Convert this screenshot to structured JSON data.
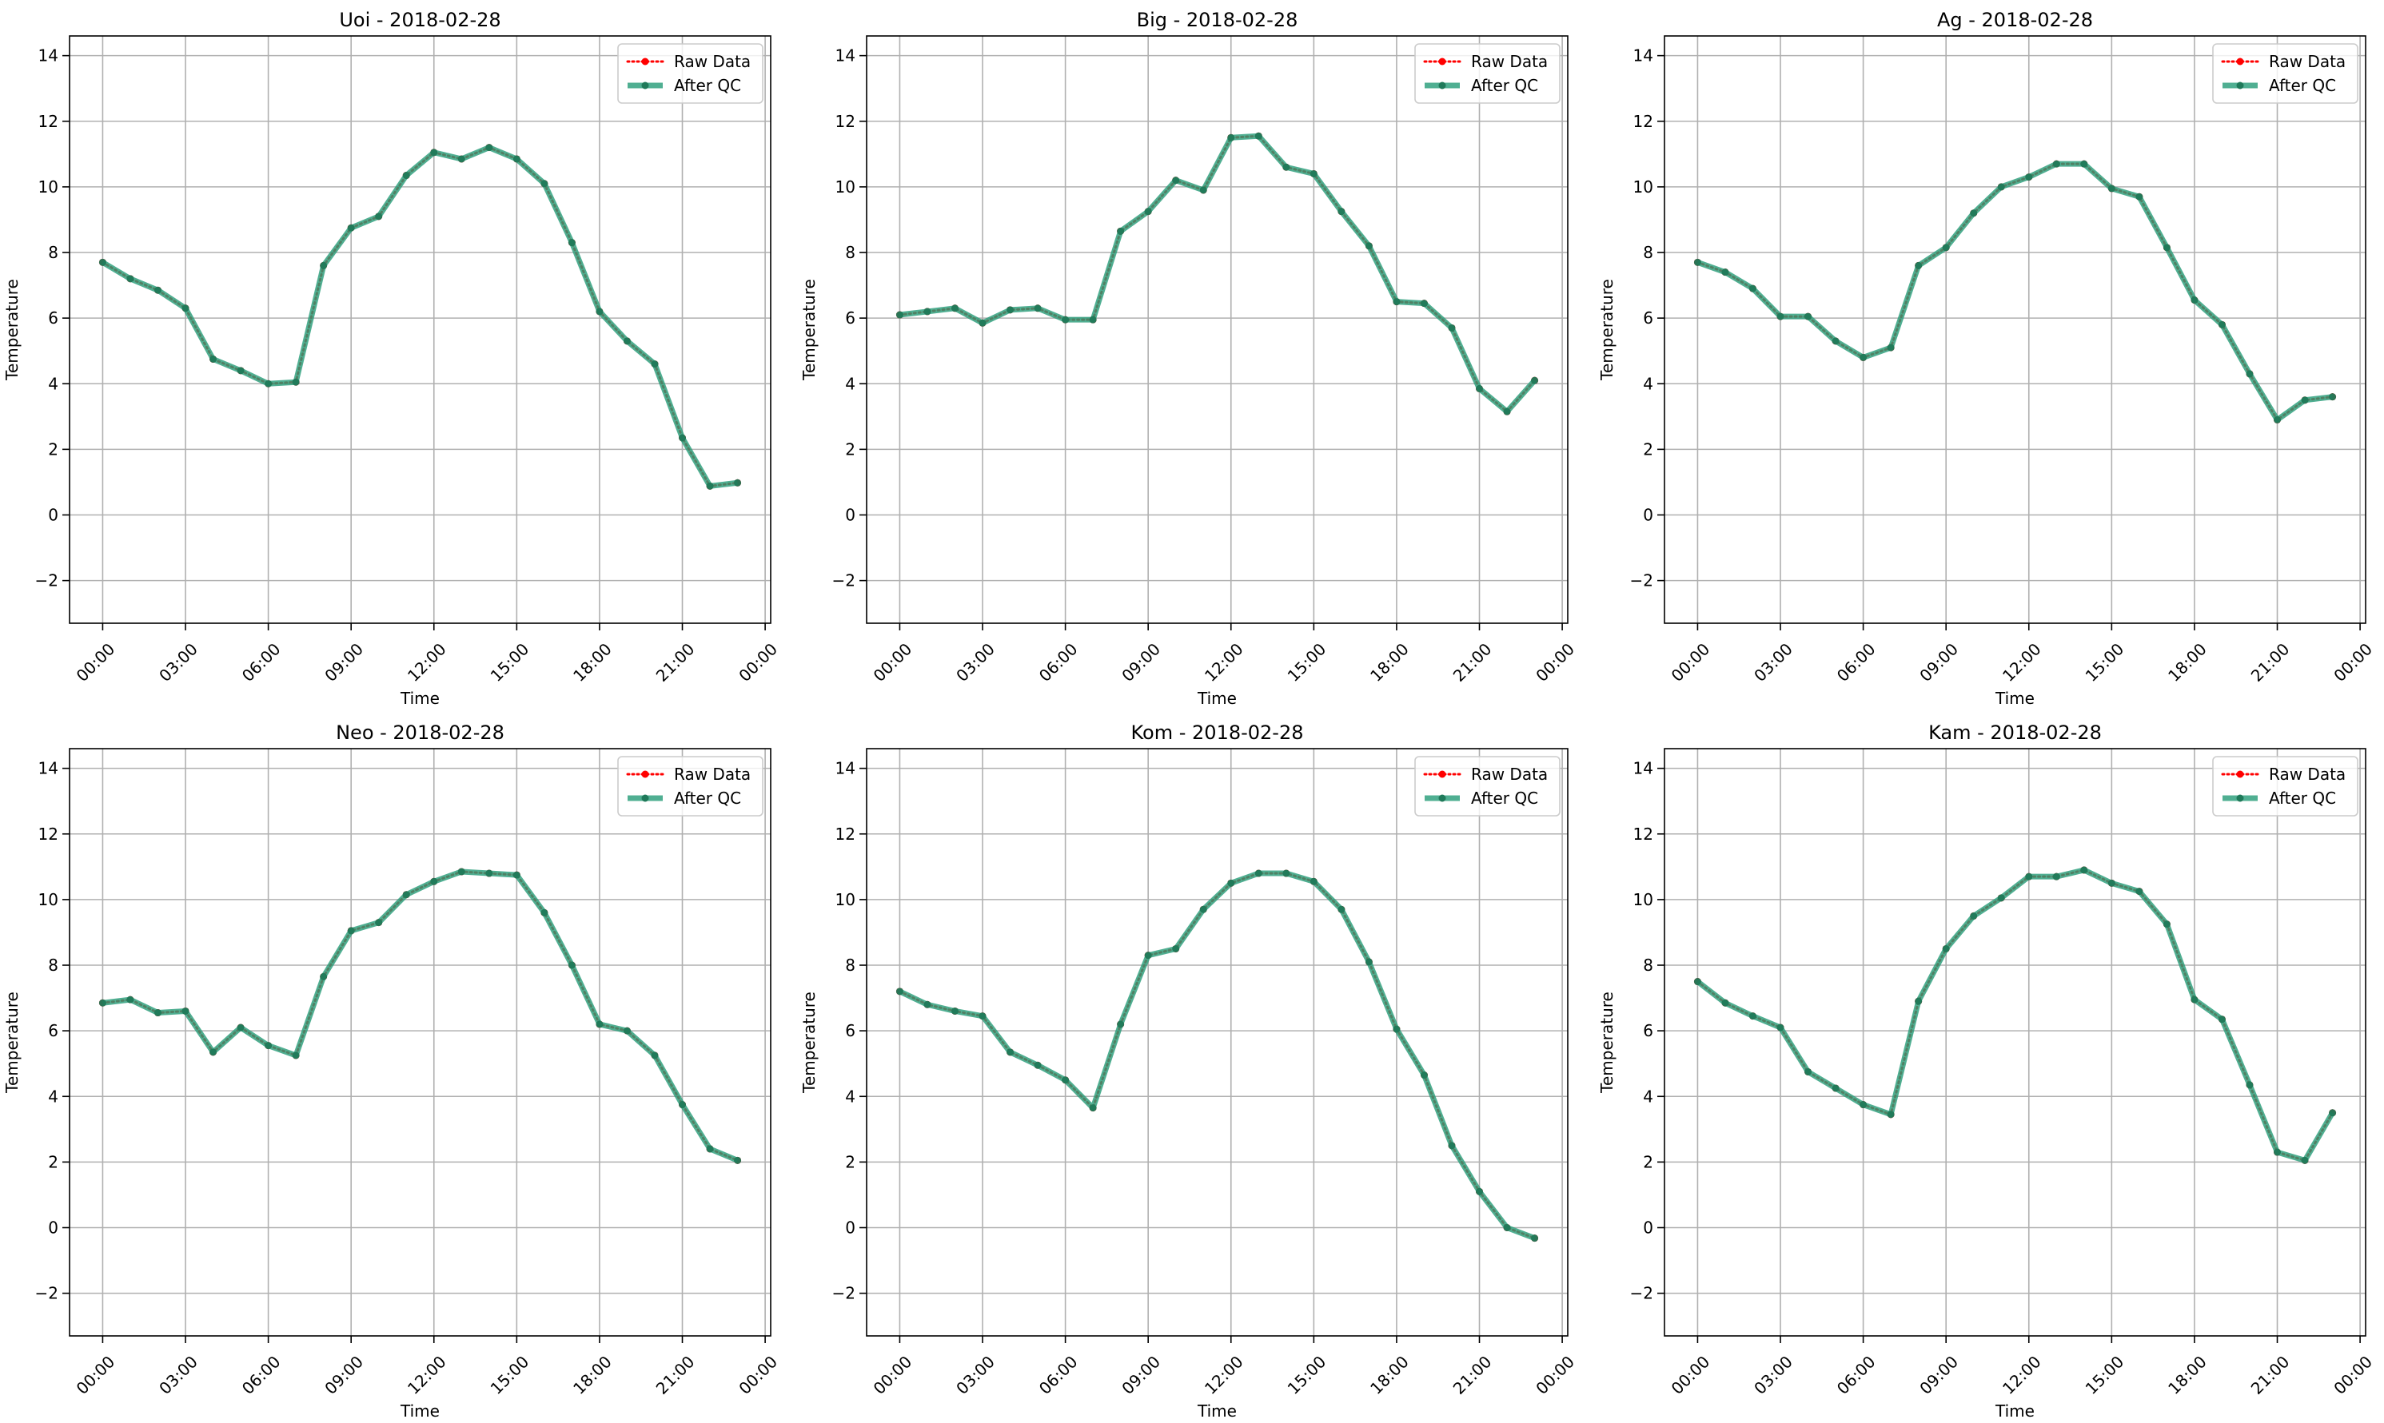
{
  "colors": {
    "raw": "#ff0000",
    "qc": "#2a9d7a",
    "qc_marker": "#1f7a5a",
    "grid": "#b0b0b0"
  },
  "x_ticks": [
    "00:00",
    "03:00",
    "06:00",
    "09:00",
    "12:00",
    "15:00",
    "18:00",
    "21:00",
    "00:00"
  ],
  "chart_data": [
    {
      "type": "line",
      "title": "Uoi - 2018-02-28",
      "xlabel": "Time",
      "ylabel": "Temperature",
      "x_unit": "hour of day",
      "xlim": [
        -1.2,
        24.2
      ],
      "ylim": [
        -3.3,
        14.6
      ],
      "yticks": [
        -2,
        0,
        2,
        4,
        6,
        8,
        10,
        12,
        14
      ],
      "grid": true,
      "legend_position": "top-right",
      "x": [
        0,
        1,
        2,
        3,
        4,
        5,
        6,
        7,
        8,
        9,
        10,
        11,
        12,
        13,
        14,
        15,
        16,
        17,
        18,
        19,
        20,
        21,
        22,
        23
      ],
      "series": [
        {
          "name": "Raw Data",
          "style": "dotted",
          "values": [
            7.7,
            7.2,
            6.85,
            6.3,
            4.75,
            4.4,
            4.0,
            4.05,
            7.6,
            8.75,
            9.1,
            10.35,
            11.05,
            10.85,
            11.2,
            10.85,
            10.1,
            8.3,
            6.2,
            5.3,
            4.6,
            2.35,
            0.88,
            0.98
          ]
        },
        {
          "name": "After QC",
          "style": "solid",
          "values": [
            7.7,
            7.2,
            6.85,
            6.3,
            4.75,
            4.4,
            4.0,
            4.05,
            7.6,
            8.75,
            9.1,
            10.35,
            11.05,
            10.85,
            11.2,
            10.85,
            10.1,
            8.3,
            6.2,
            5.3,
            4.6,
            2.35,
            0.88,
            0.98
          ]
        }
      ]
    },
    {
      "type": "line",
      "title": "Big - 2018-02-28",
      "xlabel": "Time",
      "ylabel": "Temperature",
      "x_unit": "hour of day",
      "xlim": [
        -1.2,
        24.2
      ],
      "ylim": [
        -3.3,
        14.6
      ],
      "yticks": [
        -2,
        0,
        2,
        4,
        6,
        8,
        10,
        12,
        14
      ],
      "grid": true,
      "legend_position": "top-right",
      "x": [
        0,
        1,
        2,
        3,
        4,
        5,
        6,
        7,
        8,
        9,
        10,
        11,
        12,
        13,
        14,
        15,
        16,
        17,
        18,
        19,
        20,
        21,
        22,
        23
      ],
      "series": [
        {
          "name": "Raw Data",
          "style": "dotted",
          "values": [
            6.1,
            6.2,
            6.3,
            5.85,
            6.25,
            6.3,
            5.95,
            5.95,
            8.65,
            9.25,
            10.2,
            9.9,
            11.5,
            11.55,
            10.6,
            10.4,
            9.25,
            8.2,
            6.5,
            6.45,
            5.7,
            3.85,
            3.15,
            4.1
          ]
        },
        {
          "name": "After QC",
          "style": "solid",
          "values": [
            6.1,
            6.2,
            6.3,
            5.85,
            6.25,
            6.3,
            5.95,
            5.95,
            8.65,
            9.25,
            10.2,
            9.9,
            11.5,
            11.55,
            10.6,
            10.4,
            9.25,
            8.2,
            6.5,
            6.45,
            5.7,
            3.85,
            3.15,
            4.1
          ]
        }
      ]
    },
    {
      "type": "line",
      "title": "Ag - 2018-02-28",
      "xlabel": "Time",
      "ylabel": "Temperature",
      "x_unit": "hour of day",
      "xlim": [
        -1.2,
        24.2
      ],
      "ylim": [
        -3.3,
        14.6
      ],
      "yticks": [
        -2,
        0,
        2,
        4,
        6,
        8,
        10,
        12,
        14
      ],
      "grid": true,
      "legend_position": "top-right",
      "x": [
        0,
        1,
        2,
        3,
        4,
        5,
        6,
        7,
        8,
        9,
        10,
        11,
        12,
        13,
        14,
        15,
        16,
        17,
        18,
        19,
        20,
        21,
        22,
        23
      ],
      "series": [
        {
          "name": "Raw Data",
          "style": "dotted",
          "values": [
            7.7,
            7.4,
            6.9,
            6.05,
            6.05,
            5.3,
            4.8,
            5.1,
            7.6,
            8.15,
            9.2,
            10.0,
            10.3,
            10.7,
            10.7,
            9.95,
            9.7,
            8.15,
            6.55,
            5.8,
            4.3,
            2.9,
            3.5,
            3.6
          ]
        },
        {
          "name": "After QC",
          "style": "solid",
          "values": [
            7.7,
            7.4,
            6.9,
            6.05,
            6.05,
            5.3,
            4.8,
            5.1,
            7.6,
            8.15,
            9.2,
            10.0,
            10.3,
            10.7,
            10.7,
            9.95,
            9.7,
            8.15,
            6.55,
            5.8,
            4.3,
            2.9,
            3.5,
            3.6
          ]
        }
      ]
    },
    {
      "type": "line",
      "title": "Neo - 2018-02-28",
      "xlabel": "Time",
      "ylabel": "Temperature",
      "x_unit": "hour of day",
      "xlim": [
        -1.2,
        24.2
      ],
      "ylim": [
        -3.3,
        14.6
      ],
      "yticks": [
        -2,
        0,
        2,
        4,
        6,
        8,
        10,
        12,
        14
      ],
      "grid": true,
      "legend_position": "top-right",
      "x": [
        0,
        1,
        2,
        3,
        4,
        5,
        6,
        7,
        8,
        9,
        10,
        11,
        12,
        13,
        14,
        15,
        16,
        17,
        18,
        19,
        20,
        21,
        22,
        23
      ],
      "series": [
        {
          "name": "Raw Data",
          "style": "dotted",
          "values": [
            6.85,
            6.95,
            6.55,
            6.6,
            5.35,
            6.1,
            5.55,
            5.25,
            7.65,
            9.05,
            9.3,
            10.15,
            10.55,
            10.85,
            10.8,
            10.75,
            9.6,
            8.0,
            6.2,
            6.0,
            5.25,
            3.75,
            2.4,
            2.05
          ]
        },
        {
          "name": "After QC",
          "style": "solid",
          "values": [
            6.85,
            6.95,
            6.55,
            6.6,
            5.35,
            6.1,
            5.55,
            5.25,
            7.65,
            9.05,
            9.3,
            10.15,
            10.55,
            10.85,
            10.8,
            10.75,
            9.6,
            8.0,
            6.2,
            6.0,
            5.25,
            3.75,
            2.4,
            2.05
          ]
        }
      ]
    },
    {
      "type": "line",
      "title": "Kom - 2018-02-28",
      "xlabel": "Time",
      "ylabel": "Temperature",
      "x_unit": "hour of day",
      "xlim": [
        -1.2,
        24.2
      ],
      "ylim": [
        -3.3,
        14.6
      ],
      "yticks": [
        -2,
        0,
        2,
        4,
        6,
        8,
        10,
        12,
        14
      ],
      "grid": true,
      "legend_position": "top-right",
      "x": [
        0,
        1,
        2,
        3,
        4,
        5,
        6,
        7,
        8,
        9,
        10,
        11,
        12,
        13,
        14,
        15,
        16,
        17,
        18,
        19,
        20,
        21,
        22,
        23
      ],
      "series": [
        {
          "name": "Raw Data",
          "style": "dotted",
          "values": [
            7.2,
            6.8,
            6.6,
            6.45,
            5.35,
            4.95,
            4.5,
            3.65,
            6.2,
            8.3,
            8.5,
            9.7,
            10.5,
            10.8,
            10.8,
            10.55,
            9.7,
            8.1,
            6.05,
            4.65,
            2.5,
            1.1,
            0.0,
            -0.32
          ]
        },
        {
          "name": "After QC",
          "style": "solid",
          "values": [
            7.2,
            6.8,
            6.6,
            6.45,
            5.35,
            4.95,
            4.5,
            3.65,
            6.2,
            8.3,
            8.5,
            9.7,
            10.5,
            10.8,
            10.8,
            10.55,
            9.7,
            8.1,
            6.05,
            4.65,
            2.5,
            1.1,
            0.0,
            -0.32
          ]
        }
      ]
    },
    {
      "type": "line",
      "title": "Kam - 2018-02-28",
      "xlabel": "Time",
      "ylabel": "Temperature",
      "x_unit": "hour of day",
      "xlim": [
        -1.2,
        24.2
      ],
      "ylim": [
        -3.3,
        14.6
      ],
      "yticks": [
        -2,
        0,
        2,
        4,
        6,
        8,
        10,
        12,
        14
      ],
      "grid": true,
      "legend_position": "top-right",
      "x": [
        0,
        1,
        2,
        3,
        4,
        5,
        6,
        7,
        8,
        9,
        10,
        11,
        12,
        13,
        14,
        15,
        16,
        17,
        18,
        19,
        20,
        21,
        22,
        23
      ],
      "series": [
        {
          "name": "Raw Data",
          "style": "dotted",
          "values": [
            7.5,
            6.85,
            6.45,
            6.1,
            4.75,
            4.25,
            3.75,
            3.45,
            6.9,
            8.5,
            9.5,
            10.05,
            10.7,
            10.7,
            10.9,
            10.5,
            10.25,
            9.25,
            6.95,
            6.35,
            4.35,
            2.3,
            2.05,
            3.5
          ]
        },
        {
          "name": "After QC",
          "style": "solid",
          "values": [
            7.5,
            6.85,
            6.45,
            6.1,
            4.75,
            4.25,
            3.75,
            3.45,
            6.9,
            8.5,
            9.5,
            10.05,
            10.7,
            10.7,
            10.9,
            10.5,
            10.25,
            9.25,
            6.95,
            6.35,
            4.35,
            2.3,
            2.05,
            3.5
          ]
        }
      ]
    }
  ]
}
